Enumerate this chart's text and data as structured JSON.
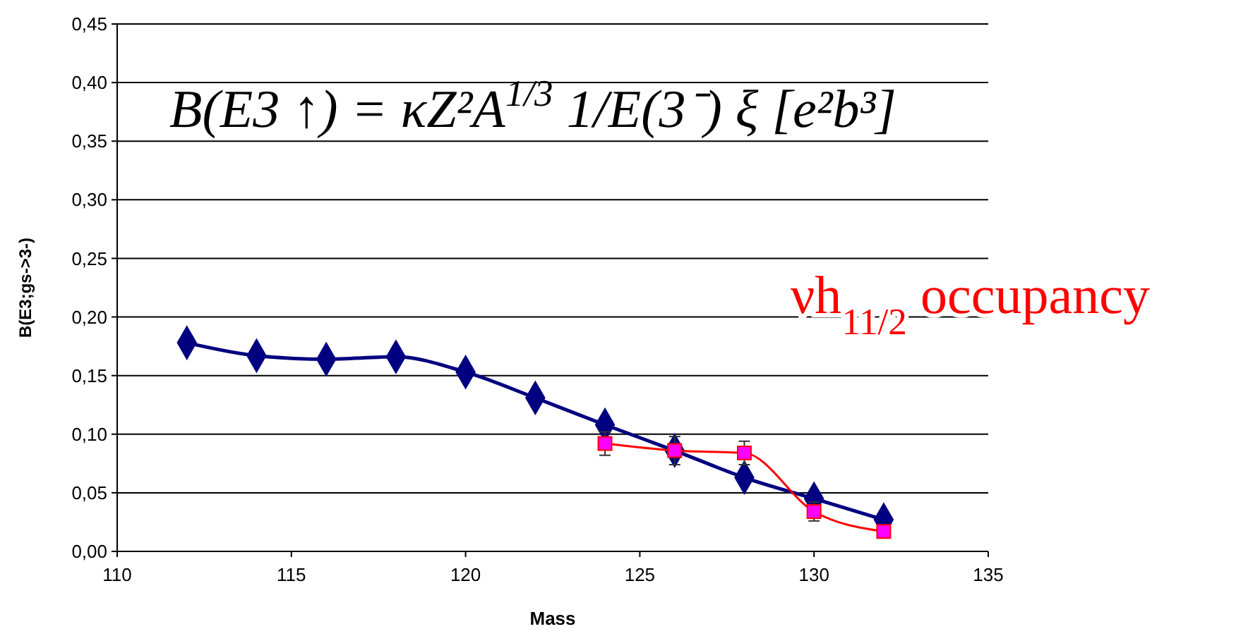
{
  "chart_data": {
    "type": "line",
    "xlabel": "Mass",
    "ylabel": "B(E3;gs->3-)",
    "xlim": [
      110,
      135
    ],
    "xticks": [
      110,
      115,
      120,
      125,
      130,
      135
    ],
    "ylim": [
      0,
      0.45
    ],
    "yticks": [
      {
        "value": 0,
        "label": "0,00"
      },
      {
        "value": 0.05,
        "label": "0,05"
      },
      {
        "value": 0.1,
        "label": "0,10"
      },
      {
        "value": 0.15,
        "label": "0,15"
      },
      {
        "value": 0.2,
        "label": "0,20"
      },
      {
        "value": 0.25,
        "label": "0,25"
      },
      {
        "value": 0.3,
        "label": "0,30"
      },
      {
        "value": 0.35,
        "label": "0,35"
      },
      {
        "value": 0.4,
        "label": "0,40"
      },
      {
        "value": 0.45,
        "label": "0,45"
      }
    ],
    "grid": "y",
    "series": [
      {
        "color": "#000080",
        "marker": "diamond",
        "x": [
          112,
          114,
          116,
          118,
          120,
          122,
          124,
          126,
          128,
          130,
          132
        ],
        "values": [
          0.178,
          0.167,
          0.164,
          0.166,
          0.153,
          0.131,
          0.108,
          0.086,
          0.063,
          0.045,
          0.027
        ]
      },
      {
        "color": "#ff0000",
        "marker": "square",
        "x": [
          124,
          126,
          128,
          130,
          132
        ],
        "values": [
          0.092,
          0.086,
          0.084,
          0.034,
          0.017
        ],
        "errors": [
          0.01,
          0.012,
          0.01,
          0.008,
          null
        ]
      }
    ],
    "annotations": [
      "B(E3 ↑) = κZ²A$^{1/3}$ 1/E(3⁻) ξ [e²b³]",
      "νh$_{11/2}$ occupancy"
    ]
  }
}
